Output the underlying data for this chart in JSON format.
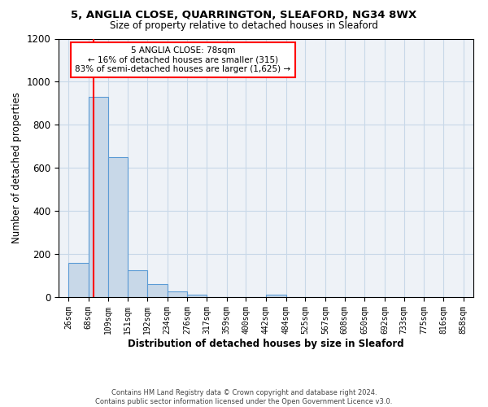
{
  "title": "5, ANGLIA CLOSE, QUARRINGTON, SLEAFORD, NG34 8WX",
  "subtitle": "Size of property relative to detached houses in Sleaford",
  "bar_values": [
    160,
    930,
    650,
    125,
    60,
    28,
    10,
    0,
    0,
    0,
    10,
    0,
    0,
    0,
    0,
    0,
    0,
    0,
    0,
    0
  ],
  "bin_labels": [
    "26sqm",
    "68sqm",
    "109sqm",
    "151sqm",
    "192sqm",
    "234sqm",
    "276sqm",
    "317sqm",
    "359sqm",
    "400sqm",
    "442sqm",
    "484sqm",
    "525sqm",
    "567sqm",
    "608sqm",
    "650sqm",
    "692sqm",
    "733sqm",
    "775sqm",
    "816sqm",
    "858sqm"
  ],
  "bar_color": "#c8d8e8",
  "bar_edgecolor": "#5b9bd5",
  "xlabel": "Distribution of detached houses by size in Sleaford",
  "ylabel": "Number of detached properties",
  "ylim": [
    0,
    1200
  ],
  "yticks": [
    0,
    200,
    400,
    600,
    800,
    1000,
    1200
  ],
  "annotation_title": "5 ANGLIA CLOSE: 78sqm",
  "annotation_line1": "← 16% of detached houses are smaller (315)",
  "annotation_line2": "83% of semi-detached houses are larger (1,625) →",
  "redline_x": 78,
  "bin_edges": [
    26,
    68,
    109,
    151,
    192,
    234,
    276,
    317,
    359,
    400,
    442,
    484,
    525,
    567,
    608,
    650,
    692,
    733,
    775,
    816,
    858
  ],
  "footer_line1": "Contains HM Land Registry data © Crown copyright and database right 2024.",
  "footer_line2": "Contains public sector information licensed under the Open Government Licence v3.0.",
  "background_color": "#eef2f7",
  "grid_color": "#c8d8e8"
}
